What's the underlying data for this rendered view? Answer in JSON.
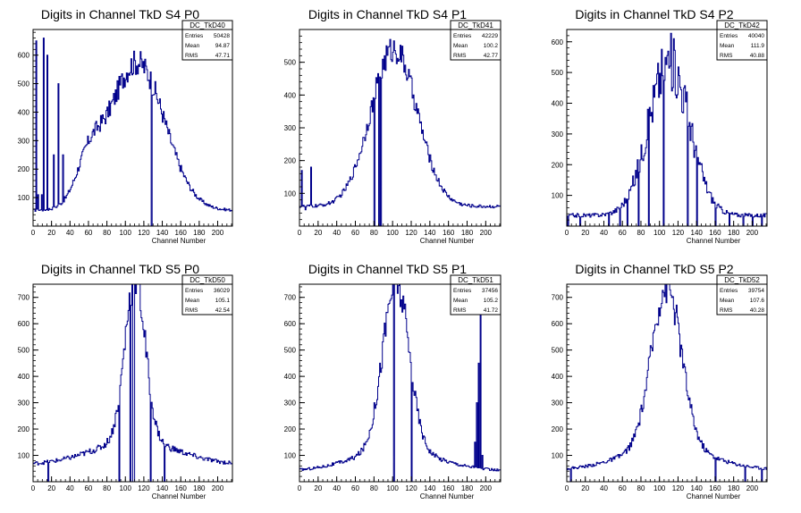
{
  "colors": {
    "line": "#00008b",
    "axis": "#000000",
    "background": "#ffffff"
  },
  "chart_data": [
    {
      "type": "histogram",
      "title": "Digits in Channel TkD S4 P0",
      "xlabel": "Channel Number",
      "ylabel": "",
      "xlim": [
        0,
        216
      ],
      "ylim": [
        0,
        690
      ],
      "xticks": [
        0,
        20,
        40,
        60,
        80,
        100,
        120,
        140,
        160,
        180,
        200
      ],
      "yticks": [
        100,
        200,
        300,
        400,
        500,
        600
      ],
      "stats": {
        "name": "DC_TkD40",
        "rows": [
          [
            "Entries",
            "50428"
          ],
          [
            "Mean",
            "94.87"
          ],
          [
            "RMS",
            "47.71"
          ]
        ]
      },
      "profile": {
        "baseline": 55,
        "peaks": [
          [
            112,
            520,
            30
          ],
          [
            60,
            130,
            14
          ]
        ],
        "spikes": [
          [
            3,
            650
          ],
          [
            5,
            110
          ],
          [
            9,
            110
          ],
          [
            11,
            660
          ],
          [
            15,
            600
          ],
          [
            22,
            250
          ],
          [
            27,
            500
          ],
          [
            32,
            250
          ],
          [
            128,
            0
          ]
        ],
        "noise": 0.08
      }
    },
    {
      "type": "histogram",
      "title": "Digits in Channel TkD S4 P1",
      "xlabel": "Channel Number",
      "ylabel": "",
      "xlim": [
        0,
        216
      ],
      "ylim": [
        0,
        600
      ],
      "xticks": [
        0,
        20,
        40,
        60,
        80,
        100,
        120,
        140,
        160,
        180,
        200
      ],
      "yticks": [
        100,
        200,
        300,
        400,
        500
      ],
      "stats": {
        "name": "DC_TkD41",
        "rows": [
          [
            "Entries",
            "42229"
          ],
          [
            "Mean",
            "100.2"
          ],
          [
            "RMS",
            "42.77"
          ]
        ]
      },
      "profile": {
        "baseline": 60,
        "peaks": [
          [
            101,
            480,
            25
          ]
        ],
        "spikes": [
          [
            2,
            170
          ],
          [
            6,
            50
          ],
          [
            12,
            180
          ],
          [
            80,
            0
          ],
          [
            85,
            0
          ],
          [
            87,
            0
          ]
        ],
        "noise": 0.08
      }
    },
    {
      "type": "histogram",
      "title": "Digits in Channel TkD S4 P2",
      "xlabel": "Channel Number",
      "ylabel": "",
      "xlim": [
        0,
        216
      ],
      "ylim": [
        0,
        640
      ],
      "xticks": [
        0,
        20,
        40,
        60,
        80,
        100,
        120,
        140,
        160,
        180,
        200
      ],
      "yticks": [
        100,
        200,
        300,
        400,
        500,
        600
      ],
      "stats": {
        "name": "DC_TkD42",
        "rows": [
          [
            "Entries",
            "40040"
          ],
          [
            "Mean",
            "111.9"
          ],
          [
            "RMS",
            "40.88"
          ]
        ]
      },
      "profile": {
        "baseline": 35,
        "peaks": [
          [
            110,
            500,
            22
          ]
        ],
        "spikes": [
          [
            1,
            0
          ],
          [
            14,
            0
          ],
          [
            45,
            0
          ],
          [
            57,
            0
          ],
          [
            65,
            0
          ],
          [
            77,
            0
          ],
          [
            88,
            0
          ],
          [
            104,
            0
          ],
          [
            130,
            0
          ],
          [
            140,
            0
          ],
          [
            160,
            0
          ],
          [
            175,
            0
          ],
          [
            190,
            0
          ],
          [
            200,
            0
          ],
          [
            210,
            0
          ]
        ],
        "noise": 0.18
      }
    },
    {
      "type": "histogram",
      "title": "Digits in Channel TkD S5 P0",
      "xlabel": "Channel Number",
      "ylabel": "",
      "xlim": [
        0,
        216
      ],
      "ylim": [
        0,
        750
      ],
      "xticks": [
        0,
        20,
        40,
        60,
        80,
        100,
        120,
        140,
        160,
        180,
        200
      ],
      "yticks": [
        100,
        200,
        300,
        400,
        500,
        600,
        700
      ],
      "stats": {
        "name": "DC_TkD50",
        "rows": [
          [
            "Entries",
            "36029"
          ],
          [
            "Mean",
            "105.1"
          ],
          [
            "RMS",
            "42.54"
          ]
        ]
      },
      "profile": {
        "baseline": 65,
        "peaks": [
          [
            110,
            620,
            11
          ],
          [
            110,
            90,
            45
          ]
        ],
        "spikes": [
          [
            16,
            0
          ],
          [
            93,
            0
          ],
          [
            105,
            0
          ],
          [
            108,
            0
          ],
          [
            109,
            0
          ],
          [
            127,
            0
          ],
          [
            142,
            0
          ]
        ],
        "noise": 0.1
      }
    },
    {
      "type": "histogram",
      "title": "Digits in Channel TkD S5 P1",
      "xlabel": "Channel Number",
      "ylabel": "",
      "xlim": [
        0,
        216
      ],
      "ylim": [
        0,
        750
      ],
      "xticks": [
        0,
        20,
        40,
        60,
        80,
        100,
        120,
        140,
        160,
        180,
        200
      ],
      "yticks": [
        100,
        200,
        300,
        400,
        500,
        600,
        700
      ],
      "stats": {
        "name": "DC_TkD51",
        "rows": [
          [
            "Entries",
            "37456"
          ],
          [
            "Mean",
            "105.2"
          ],
          [
            "RMS",
            "41.72"
          ]
        ]
      },
      "profile": {
        "baseline": 40,
        "peaks": [
          [
            103,
            640,
            14
          ],
          [
            103,
            80,
            45
          ]
        ],
        "spikes": [
          [
            101,
            0
          ],
          [
            120,
            0
          ],
          [
            186,
            60
          ],
          [
            188,
            150
          ],
          [
            190,
            300
          ],
          [
            192,
            450
          ],
          [
            194,
            730
          ],
          [
            196,
            100
          ]
        ],
        "noise": 0.1
      }
    },
    {
      "type": "histogram",
      "title": "Digits in Channel TkD S5 P2",
      "xlabel": "Channel Number",
      "ylabel": "",
      "xlim": [
        0,
        216
      ],
      "ylim": [
        0,
        750
      ],
      "xticks": [
        0,
        20,
        40,
        60,
        80,
        100,
        120,
        140,
        160,
        180,
        200
      ],
      "yticks": [
        100,
        200,
        300,
        400,
        500,
        600,
        700
      ],
      "stats": {
        "name": "DC_TkD52",
        "rows": [
          [
            "Entries",
            "39754"
          ],
          [
            "Mean",
            "107.6"
          ],
          [
            "RMS",
            "40.28"
          ]
        ]
      },
      "profile": {
        "baseline": 45,
        "peaks": [
          [
            107,
            610,
            16
          ],
          [
            107,
            90,
            45
          ]
        ],
        "spikes": [
          [
            4,
            0
          ],
          [
            160,
            0
          ],
          [
            192,
            0
          ],
          [
            210,
            0
          ]
        ],
        "noise": 0.1
      }
    }
  ]
}
